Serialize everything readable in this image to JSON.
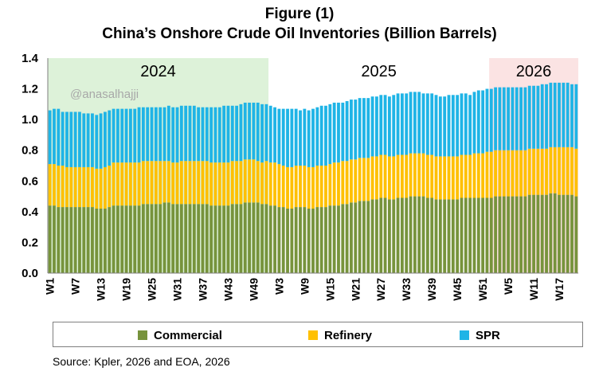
{
  "figure": {
    "title": "Figure (1)",
    "subtitle": "China’s Onshore Crude Oil Inventories (Billion Barrels)"
  },
  "watermark": "@anasalhajji",
  "source": "Source: Kpler, 2026 and EOA, 2026",
  "colors": {
    "commercial": "#77933C",
    "refinery": "#FFC000",
    "spr": "#1FB4E6",
    "band_2024": "#DDF2D9",
    "band_2026": "#FBE3E3"
  },
  "chart_data": {
    "type": "bar",
    "stacked": true,
    "ylim": [
      0,
      1.4
    ],
    "yticks": [
      "0.0",
      "0.2",
      "0.4",
      "0.6",
      "0.8",
      "1.0",
      "1.2",
      "1.4"
    ],
    "grid": false,
    "legend_position": "bottom",
    "year_bands": [
      {
        "label": "2024",
        "start": 0,
        "end": 52
      },
      {
        "label": "2025",
        "start": 52,
        "end": 104
      },
      {
        "label": "2026",
        "start": 104,
        "end": 125
      }
    ],
    "categories": [
      "W1",
      "W2",
      "W3",
      "W4",
      "W5",
      "W6",
      "W7",
      "W8",
      "W9",
      "W10",
      "W11",
      "W12",
      "W13",
      "W14",
      "W15",
      "W16",
      "W17",
      "W18",
      "W19",
      "W20",
      "W21",
      "W22",
      "W23",
      "W24",
      "W25",
      "W26",
      "W27",
      "W28",
      "W29",
      "W30",
      "W31",
      "W32",
      "W33",
      "W34",
      "W35",
      "W36",
      "W37",
      "W38",
      "W39",
      "W40",
      "W41",
      "W42",
      "W43",
      "W44",
      "W45",
      "W46",
      "W47",
      "W48",
      "W49",
      "W50",
      "W51",
      "W52",
      "W1",
      "W2",
      "W3",
      "W4",
      "W5",
      "W6",
      "W7",
      "W8",
      "W9",
      "W10",
      "W11",
      "W12",
      "W13",
      "W14",
      "W15",
      "W16",
      "W17",
      "W18",
      "W19",
      "W20",
      "W21",
      "W22",
      "W23",
      "W24",
      "W25",
      "W26",
      "W27",
      "W28",
      "W29",
      "W30",
      "W31",
      "W32",
      "W33",
      "W34",
      "W35",
      "W36",
      "W37",
      "W38",
      "W39",
      "W40",
      "W41",
      "W42",
      "W43",
      "W44",
      "W45",
      "W46",
      "W47",
      "W48",
      "W49",
      "W50",
      "W51",
      "W52",
      "W1",
      "W2",
      "W3",
      "W4",
      "W5",
      "W6",
      "W7",
      "W8",
      "W9",
      "W10",
      "W11",
      "W12",
      "W13",
      "W14",
      "W15",
      "W16",
      "W17",
      "W18",
      "W19",
      "W20",
      "W21"
    ],
    "xtick_labels": [
      {
        "index": 0,
        "label": "W1"
      },
      {
        "index": 6,
        "label": "W7"
      },
      {
        "index": 12,
        "label": "W13"
      },
      {
        "index": 18,
        "label": "W19"
      },
      {
        "index": 24,
        "label": "W25"
      },
      {
        "index": 30,
        "label": "W31"
      },
      {
        "index": 36,
        "label": "W37"
      },
      {
        "index": 42,
        "label": "W43"
      },
      {
        "index": 48,
        "label": "W49"
      },
      {
        "index": 54,
        "label": "W3"
      },
      {
        "index": 60,
        "label": "W9"
      },
      {
        "index": 66,
        "label": "W15"
      },
      {
        "index": 72,
        "label": "W21"
      },
      {
        "index": 78,
        "label": "W27"
      },
      {
        "index": 84,
        "label": "W33"
      },
      {
        "index": 90,
        "label": "W39"
      },
      {
        "index": 96,
        "label": "W45"
      },
      {
        "index": 102,
        "label": "W51"
      },
      {
        "index": 108,
        "label": "W5"
      },
      {
        "index": 114,
        "label": "W11"
      },
      {
        "index": 120,
        "label": "W17"
      }
    ],
    "series": [
      {
        "name": "Commercial",
        "values": [
          0.44,
          0.44,
          0.43,
          0.43,
          0.43,
          0.43,
          0.43,
          0.43,
          0.43,
          0.43,
          0.43,
          0.42,
          0.42,
          0.42,
          0.43,
          0.44,
          0.44,
          0.44,
          0.44,
          0.44,
          0.44,
          0.44,
          0.45,
          0.45,
          0.45,
          0.45,
          0.45,
          0.46,
          0.46,
          0.45,
          0.45,
          0.45,
          0.45,
          0.45,
          0.45,
          0.45,
          0.45,
          0.45,
          0.44,
          0.44,
          0.44,
          0.44,
          0.44,
          0.45,
          0.45,
          0.45,
          0.46,
          0.46,
          0.46,
          0.46,
          0.45,
          0.45,
          0.44,
          0.44,
          0.43,
          0.43,
          0.42,
          0.42,
          0.43,
          0.43,
          0.43,
          0.42,
          0.42,
          0.43,
          0.43,
          0.43,
          0.44,
          0.44,
          0.44,
          0.45,
          0.45,
          0.46,
          0.46,
          0.47,
          0.47,
          0.47,
          0.48,
          0.48,
          0.49,
          0.49,
          0.48,
          0.48,
          0.49,
          0.49,
          0.49,
          0.5,
          0.5,
          0.5,
          0.5,
          0.49,
          0.49,
          0.48,
          0.48,
          0.48,
          0.48,
          0.48,
          0.48,
          0.49,
          0.49,
          0.49,
          0.49,
          0.49,
          0.49,
          0.49,
          0.49,
          0.5,
          0.5,
          0.5,
          0.5,
          0.5,
          0.5,
          0.5,
          0.5,
          0.51,
          0.51,
          0.51,
          0.51,
          0.51,
          0.52,
          0.52,
          0.51,
          0.51,
          0.51,
          0.51,
          0.5
        ]
      },
      {
        "name": "Refinery",
        "values": [
          0.27,
          0.27,
          0.27,
          0.27,
          0.26,
          0.26,
          0.26,
          0.26,
          0.26,
          0.26,
          0.26,
          0.26,
          0.26,
          0.27,
          0.27,
          0.28,
          0.28,
          0.28,
          0.28,
          0.28,
          0.28,
          0.28,
          0.28,
          0.28,
          0.28,
          0.28,
          0.28,
          0.27,
          0.27,
          0.27,
          0.27,
          0.28,
          0.28,
          0.28,
          0.28,
          0.28,
          0.28,
          0.28,
          0.28,
          0.28,
          0.28,
          0.28,
          0.28,
          0.28,
          0.28,
          0.28,
          0.28,
          0.28,
          0.28,
          0.27,
          0.27,
          0.28,
          0.28,
          0.28,
          0.28,
          0.27,
          0.27,
          0.27,
          0.27,
          0.27,
          0.27,
          0.27,
          0.27,
          0.27,
          0.27,
          0.27,
          0.27,
          0.28,
          0.28,
          0.28,
          0.28,
          0.28,
          0.28,
          0.28,
          0.28,
          0.28,
          0.28,
          0.28,
          0.28,
          0.28,
          0.28,
          0.28,
          0.28,
          0.28,
          0.28,
          0.28,
          0.28,
          0.28,
          0.28,
          0.28,
          0.28,
          0.28,
          0.28,
          0.28,
          0.28,
          0.28,
          0.28,
          0.28,
          0.28,
          0.28,
          0.29,
          0.29,
          0.29,
          0.3,
          0.3,
          0.3,
          0.3,
          0.3,
          0.3,
          0.3,
          0.3,
          0.3,
          0.3,
          0.3,
          0.3,
          0.3,
          0.3,
          0.3,
          0.3,
          0.3,
          0.31,
          0.31,
          0.31,
          0.31,
          0.31
        ]
      },
      {
        "name": "SPR",
        "values": [
          0.35,
          0.36,
          0.37,
          0.35,
          0.36,
          0.36,
          0.36,
          0.36,
          0.35,
          0.35,
          0.35,
          0.35,
          0.36,
          0.36,
          0.36,
          0.35,
          0.35,
          0.35,
          0.35,
          0.35,
          0.35,
          0.36,
          0.35,
          0.35,
          0.35,
          0.35,
          0.35,
          0.35,
          0.36,
          0.36,
          0.36,
          0.36,
          0.36,
          0.36,
          0.36,
          0.35,
          0.35,
          0.35,
          0.36,
          0.36,
          0.36,
          0.37,
          0.37,
          0.36,
          0.36,
          0.37,
          0.37,
          0.37,
          0.37,
          0.38,
          0.38,
          0.37,
          0.37,
          0.36,
          0.36,
          0.37,
          0.38,
          0.38,
          0.37,
          0.36,
          0.37,
          0.37,
          0.38,
          0.38,
          0.39,
          0.39,
          0.39,
          0.39,
          0.39,
          0.38,
          0.39,
          0.39,
          0.39,
          0.39,
          0.39,
          0.39,
          0.39,
          0.39,
          0.39,
          0.39,
          0.39,
          0.4,
          0.4,
          0.4,
          0.4,
          0.4,
          0.4,
          0.4,
          0.39,
          0.4,
          0.4,
          0.4,
          0.39,
          0.39,
          0.4,
          0.4,
          0.4,
          0.4,
          0.4,
          0.39,
          0.4,
          0.41,
          0.41,
          0.41,
          0.41,
          0.41,
          0.41,
          0.41,
          0.41,
          0.41,
          0.41,
          0.41,
          0.41,
          0.41,
          0.41,
          0.41,
          0.42,
          0.42,
          0.42,
          0.42,
          0.42,
          0.42,
          0.42,
          0.41,
          0.42
        ]
      }
    ]
  }
}
